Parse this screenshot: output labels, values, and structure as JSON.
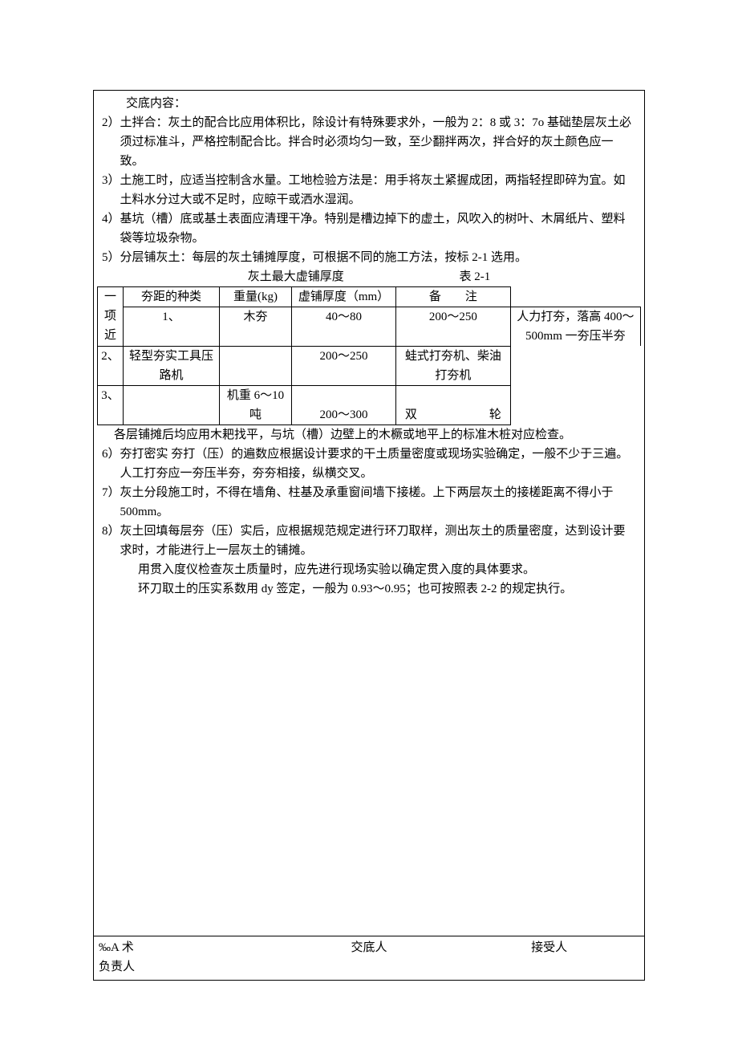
{
  "header_label": "交底内容：",
  "items": {
    "p2": "2）土拌合：灰土的配合比应用体积比，除设计有特殊要求外，一般为 2：8 或 3：7o 基础垫层灰土必须过标准斗，严格控制配合比。拌合时必须均匀一致，至少翻拌两次，拌合好的灰土颜色应一致。",
    "p3": "3）土施工时，应适当控制含水量。工地检验方法是：用手将灰土紧握成团，两指轻捏即碎为宜。如土料水分过大或不足时，应晾干或洒水湿润。",
    "p4": "4）基坑（槽）底或基土表面应清理干净。特别是槽边掉下的虚土，风吹入的树叶、木屑纸片、塑料袋等垃圾杂物。",
    "p5": "5）分层铺灰土：每层的灰土铺摊厚度，可根据不同的施工方法，按标 2-1 选用。"
  },
  "table": {
    "title_left": "灰土最大虚铺厚度",
    "title_right": "表 2-1",
    "head": {
      "c0": "一项近",
      "c1": "夯距的种类",
      "c2": "重量(kg)",
      "c3": "虚铺厚度（mm）",
      "c4": "备　　注"
    },
    "r1": {
      "c0": "1、",
      "c1": "木夯",
      "c2": "40～80",
      "c3": "200～250",
      "c4": "人力打夯，落高 400～500mm 一夯压半夯"
    },
    "r2": {
      "c0": "2、",
      "c1": "轻型夯实工具压路机",
      "c2": "",
      "c3": "200～250",
      "c4": "蛙式打夯机、柴油打夯机"
    },
    "r3": {
      "c0": "3、",
      "c1": "",
      "c2": "机重 6～10 吨",
      "c3": "200～300",
      "c4": "双　　　　　　轮"
    }
  },
  "after_table": "各层铺摊后均应用木耙找平，与坑（槽）边壁上的木橛或地平上的标准木桩对应检查。",
  "items2": {
    "p6": "6）夯打密实 夯打（压）的遍数应根据设计要求的干土质量密度或现场实验确定，一般不少于三遍。人工打夯应一夯压半夯，夯夯相接，纵横交叉。",
    "p7": "7）灰土分段施工时，不得在墙角、柱基及承重窗间墙下接槎。上下两层灰土的接槎距离不得小于 500mm。",
    "p8": "8）灰土回填每层夯（压）实后，应根据规范规定进行环刀取样，测出灰土的质量密度，达到设计要求时，才能进行上一层灰土的铺摊。",
    "p8a": "用贯入度仪检查灰土质量时，应先进行现场实验以确定贯入度的具体要求。",
    "p8b": "环刀取土的压实系数用 dy 签定，一般为 0.93～0.95；也可按照表 2-2 的规定执行。"
  },
  "footer": {
    "left1": "‰A 术",
    "mid": "交底人",
    "right": "接受人",
    "left2": "负责人"
  }
}
